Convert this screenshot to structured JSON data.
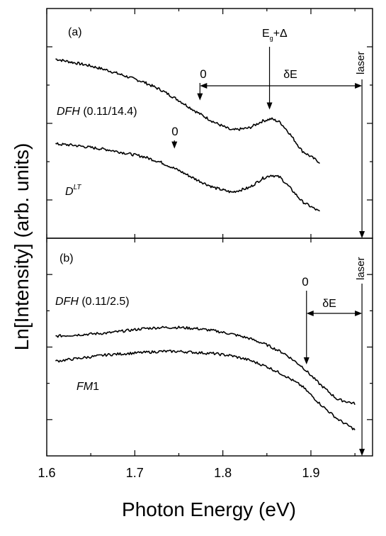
{
  "chart_data": {
    "type": "line",
    "xlabel": "Photon Energy (eV)",
    "ylabel": "Ln[Intensity] (arb. units)",
    "xlim": [
      1.6,
      1.97
    ],
    "x_ticks": [
      "1.6",
      "1.7",
      "1.8",
      "1.9"
    ],
    "x_tick_values": [
      1.6,
      1.7,
      1.8,
      1.9
    ],
    "grid": false,
    "panels": [
      {
        "panel_label": "(a)",
        "ylim": [
          0,
          1
        ],
        "series": [
          {
            "name": "DFH",
            "label_suffix": " (0.11/14.4)",
            "label_italic_part": "DFH",
            "x": [
              1.61,
              1.63,
              1.65,
              1.67,
              1.69,
              1.71,
              1.73,
              1.75,
              1.77,
              1.79,
              1.81,
              1.83,
              1.845,
              1.855,
              1.865,
              1.875,
              1.89,
              1.91
            ],
            "y": [
              0.78,
              0.765,
              0.75,
              0.73,
              0.705,
              0.68,
              0.645,
              0.6,
              0.55,
              0.505,
              0.47,
              0.48,
              0.51,
              0.52,
              0.505,
              0.46,
              0.38,
              0.33
            ]
          },
          {
            "name": "D",
            "label_superscript": "LT",
            "x": [
              1.61,
              1.63,
              1.65,
              1.67,
              1.69,
              1.71,
              1.73,
              1.75,
              1.77,
              1.79,
              1.81,
              1.83,
              1.845,
              1.855,
              1.865,
              1.875,
              1.89,
              1.91
            ],
            "y": [
              0.41,
              0.405,
              0.395,
              0.385,
              0.37,
              0.355,
              0.33,
              0.295,
              0.255,
              0.22,
              0.2,
              0.22,
              0.26,
              0.275,
              0.265,
              0.225,
              0.16,
              0.115
            ]
          }
        ],
        "annotations": [
          {
            "text": "0",
            "x": 1.774,
            "arrow_tip_y": 0.6
          },
          {
            "text": "0",
            "x": 1.745,
            "arrow_tip_y": 0.39
          },
          {
            "text": "E",
            "subscript": "g",
            "suffix": "+Δ",
            "x": 1.853,
            "arrow_tip_y": 0.56
          },
          {
            "text": "δE",
            "x_from": 1.774,
            "x_to": 1.958
          },
          {
            "text": "laser",
            "x": 1.958
          }
        ]
      },
      {
        "panel_label": "(b)",
        "ylim": [
          0,
          1
        ],
        "series": [
          {
            "name": "DFH",
            "label_suffix": " (0.11/2.5)",
            "label_italic_part": "DFH",
            "x": [
              1.61,
              1.63,
              1.65,
              1.67,
              1.69,
              1.71,
              1.73,
              1.75,
              1.77,
              1.79,
              1.81,
              1.83,
              1.85,
              1.87,
              1.89,
              1.91,
              1.93,
              1.95
            ],
            "y": [
              0.55,
              0.555,
              0.56,
              0.565,
              0.575,
              0.585,
              0.59,
              0.59,
              0.585,
              0.575,
              0.56,
              0.54,
              0.51,
              0.47,
              0.41,
              0.33,
              0.26,
              0.24
            ]
          },
          {
            "name": "FM",
            "label_suffix": "1",
            "label_italic_part": "FM",
            "x": [
              1.61,
              1.63,
              1.65,
              1.67,
              1.69,
              1.71,
              1.73,
              1.75,
              1.77,
              1.79,
              1.81,
              1.83,
              1.85,
              1.87,
              1.89,
              1.91,
              1.93,
              1.95
            ],
            "y": [
              0.435,
              0.445,
              0.455,
              0.465,
              0.47,
              0.475,
              0.48,
              0.48,
              0.475,
              0.47,
              0.46,
              0.44,
              0.41,
              0.37,
              0.32,
              0.24,
              0.17,
              0.12
            ]
          }
        ],
        "annotations": [
          {
            "text": "0",
            "x": 1.895,
            "arrow_tip_y": 0.42
          },
          {
            "text": "δE",
            "x_from": 1.895,
            "x_to": 1.958
          },
          {
            "text": "laser",
            "x": 1.958
          }
        ]
      }
    ]
  }
}
